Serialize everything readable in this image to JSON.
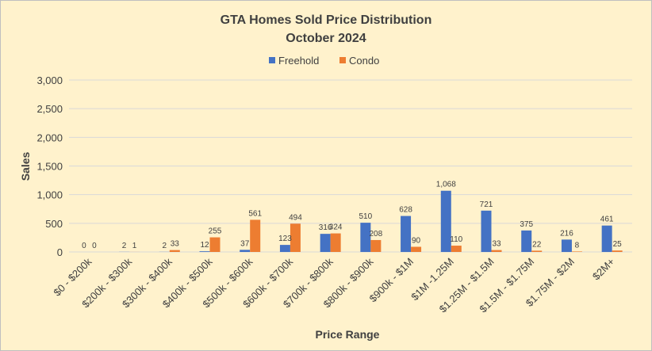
{
  "chart_data": {
    "type": "bar",
    "title": "GTA Homes Sold Price Distribution",
    "subtitle": "October 2024",
    "xlabel": "Price Range",
    "ylabel": "Sales",
    "ylim": [
      0,
      3000
    ],
    "yticks": [
      0,
      500,
      1000,
      1500,
      2000,
      2500,
      3000
    ],
    "ytick_labels": [
      "0",
      "500",
      "1,000",
      "1,500",
      "2,000",
      "2,500",
      "3,000"
    ],
    "grid": true,
    "legend_position": "top",
    "categories": [
      "$0 - $200k",
      "$200k - $300k",
      "$300k - $400k",
      "$400k - $500k",
      "$500k - $600k",
      "$600k - $700k",
      "$700k - $800k",
      "$800k - $900k",
      "$900k - $1M",
      "$1M -1.25M",
      "$1.25M - $1.5M",
      "$1.5M - $1.75M",
      "$1.75M - $2M",
      "$2M+"
    ],
    "series": [
      {
        "name": "Freehold",
        "color": "#4472c4",
        "values": [
          0,
          2,
          2,
          12,
          37,
          123,
          316,
          510,
          628,
          1068,
          721,
          375,
          216,
          461
        ],
        "labels": [
          "0",
          "2",
          "2",
          "12",
          "37",
          "123",
          "316",
          "510",
          "628",
          "1,068",
          "721",
          "375",
          "216",
          "461"
        ]
      },
      {
        "name": "Condo",
        "color": "#ed7d31",
        "values": [
          0,
          1,
          33,
          255,
          561,
          494,
          324,
          208,
          90,
          110,
          33,
          22,
          8,
          25
        ],
        "labels": [
          "0",
          "1",
          "33",
          "255",
          "561",
          "494",
          "324",
          "208",
          "90",
          "110",
          "33",
          "22",
          "8",
          "25"
        ]
      }
    ]
  }
}
